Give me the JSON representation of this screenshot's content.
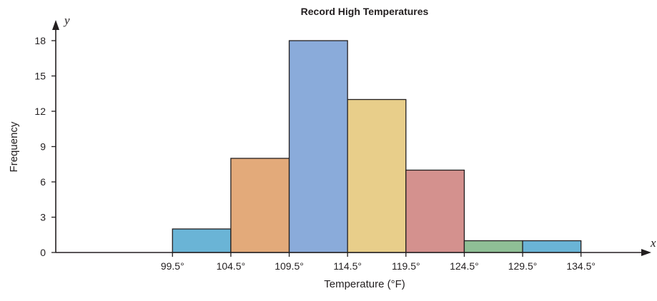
{
  "chart_data": {
    "type": "bar",
    "title": "Record High Temperatures",
    "xlabel": "Temperature (°F)",
    "ylabel": "Frequency",
    "x_axis_letter": "x",
    "y_axis_letter": "y",
    "class_boundaries": [
      99.5,
      104.5,
      109.5,
      114.5,
      119.5,
      124.5,
      129.5,
      134.5
    ],
    "boundary_labels": [
      "99.5°",
      "104.5°",
      "109.5°",
      "114.5°",
      "119.5°",
      "124.5°",
      "129.5°",
      "134.5°"
    ],
    "values": [
      2,
      8,
      18,
      13,
      7,
      1,
      1
    ],
    "bar_colors": [
      "#6ab4d6",
      "#e3aa7a",
      "#8aabda",
      "#e8ce8a",
      "#d4918e",
      "#8fbf96",
      "#6ab4d6"
    ],
    "yticks": [
      0,
      3,
      6,
      9,
      12,
      15,
      18
    ],
    "ylim": [
      0,
      20
    ],
    "xlim": [
      89.5,
      138.5
    ],
    "grid": false
  }
}
